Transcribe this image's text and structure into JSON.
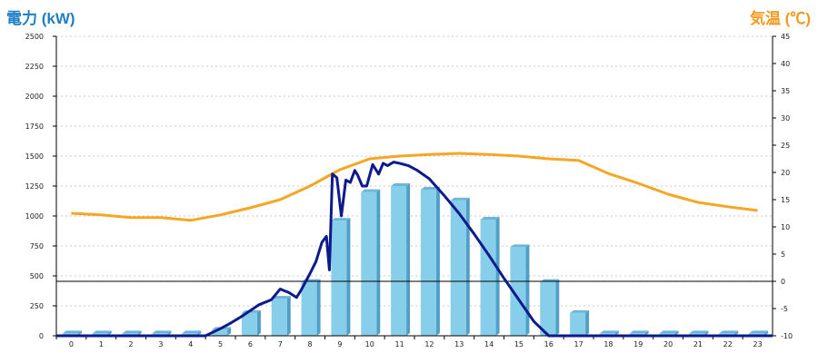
{
  "titles": {
    "left": "電力 (kW)",
    "right": "気温 (℃)"
  },
  "chart_data": {
    "type": "bar",
    "categories": [
      "0",
      "1",
      "2",
      "3",
      "4",
      "5",
      "6",
      "7",
      "8",
      "9",
      "10",
      "11",
      "12",
      "13",
      "14",
      "15",
      "16",
      "17",
      "18",
      "19",
      "20",
      "21",
      "22",
      "23"
    ],
    "y_left": {
      "label": "電力 (kW)",
      "range": [
        0,
        2500
      ],
      "ticks": [
        0,
        250,
        500,
        750,
        1000,
        1250,
        1500,
        1750,
        2000,
        2250,
        2500
      ]
    },
    "y_right": {
      "label": "気温 (℃)",
      "range": [
        -10,
        45
      ],
      "ticks": [
        -10,
        -5,
        0,
        5,
        10,
        15,
        20,
        25,
        30,
        35,
        40,
        45
      ]
    },
    "grid": true,
    "colors": {
      "bars": "#87ceeb",
      "bar_side": "#4f9fc6",
      "power_line": "#0d1a8c",
      "temp_line": "#f5a623",
      "title_left": "#1f7fc4",
      "title_right": "#f39a1e"
    },
    "series": [
      {
        "kind": "bar",
        "axis": "left",
        "values": [
          20,
          20,
          20,
          20,
          20,
          50,
          190,
          310,
          450,
          960,
          1200,
          1250,
          1220,
          1130,
          970,
          740,
          450,
          190,
          20,
          20,
          20,
          20,
          20,
          20
        ]
      },
      {
        "kind": "line",
        "axis": "left",
        "x": [
          4.5,
          5.0,
          5.3,
          5.7,
          6.0,
          6.3,
          6.7,
          7.0,
          7.3,
          7.55,
          7.7,
          8.0,
          8.2,
          8.4,
          8.55,
          8.65,
          8.75,
          8.9,
          9.05,
          9.2,
          9.35,
          9.5,
          9.6,
          9.75,
          9.9,
          10.1,
          10.3,
          10.45,
          10.6,
          10.8,
          11.0,
          11.3,
          11.6,
          12.0,
          12.5,
          13.0,
          13.5,
          14.0,
          14.5,
          15.0,
          15.5,
          16.0,
          16.5,
          17.0,
          17.5,
          17.8
        ],
        "values": [
          0,
          60,
          100,
          160,
          210,
          260,
          300,
          390,
          360,
          320,
          380,
          520,
          620,
          780,
          830,
          550,
          1350,
          1320,
          1000,
          1300,
          1280,
          1380,
          1340,
          1250,
          1250,
          1430,
          1350,
          1440,
          1420,
          1450,
          1440,
          1420,
          1380,
          1310,
          1170,
          1020,
          850,
          670,
          480,
          300,
          120,
          0,
          0,
          0,
          0,
          0
        ]
      },
      {
        "kind": "line",
        "axis": "right",
        "values": [
          12.5,
          12.2,
          11.7,
          11.7,
          11.2,
          12.2,
          13.5,
          15.0,
          17.5,
          20.5,
          22.5,
          23.0,
          23.3,
          23.5,
          23.3,
          23.0,
          22.5,
          22.2,
          19.8,
          18.0,
          16.0,
          14.5,
          13.7,
          13.0
        ]
      }
    ]
  }
}
